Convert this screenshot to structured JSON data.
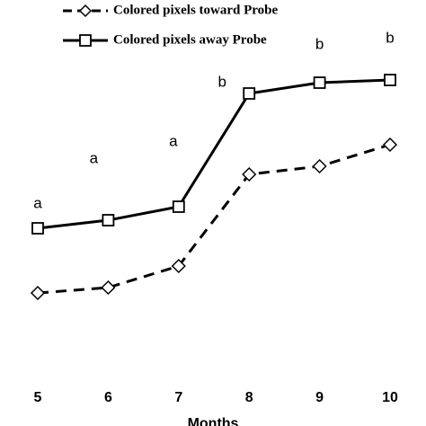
{
  "chart_data": {
    "type": "line",
    "x_label": "Months",
    "categories": [
      "5",
      "6",
      "7",
      "8",
      "9",
      "10"
    ],
    "series": [
      {
        "name": "Colored pixels toward Probe",
        "color": "#000000",
        "dash": true,
        "marker": "diamond",
        "values": [
          18,
          20,
          28,
          62,
          65,
          73
        ]
      },
      {
        "name": "Colored pixels away Probe",
        "color": "#000000",
        "dash": false,
        "marker": "square",
        "values": [
          42,
          45,
          50,
          92,
          96,
          97
        ]
      }
    ],
    "annotations": [
      "a",
      "a",
      "a",
      "b",
      "b",
      "b"
    ],
    "ylim": [
      0,
      100
    ]
  }
}
